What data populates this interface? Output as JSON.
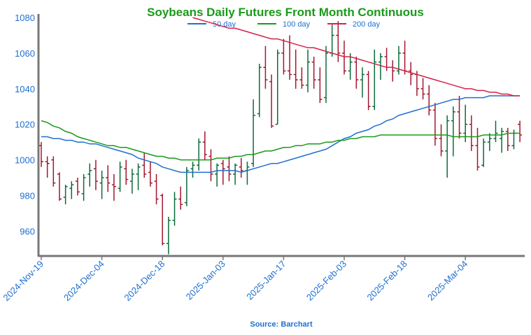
{
  "chart_data": {
    "type": "ohlc",
    "title": "Soybeans Daily Futures Front Month Continuous",
    "source": "Source: Barchart",
    "categories": [
      "2024-Nov-19",
      null,
      null,
      null,
      null,
      null,
      null,
      null,
      null,
      null,
      "2024-Dec-04",
      null,
      null,
      null,
      null,
      null,
      null,
      null,
      null,
      null,
      "2024-Dec-18",
      null,
      null,
      null,
      null,
      null,
      null,
      null,
      null,
      null,
      "2025-Jan-03",
      null,
      null,
      null,
      null,
      null,
      null,
      null,
      null,
      null,
      "2025-Jan-17",
      null,
      null,
      null,
      null,
      null,
      null,
      null,
      null,
      null,
      "2025-Feb-03",
      null,
      null,
      null,
      null,
      null,
      null,
      null,
      null,
      null,
      "2025-Feb-18",
      null,
      null,
      null,
      null,
      null,
      null,
      null,
      null,
      null,
      "2025-Mar-04",
      null,
      null,
      null,
      null,
      null,
      null,
      null,
      null,
      null
    ],
    "open": [
      1008,
      999,
      1000,
      992,
      979,
      984,
      988,
      981,
      992,
      995,
      987,
      990,
      986,
      984,
      995,
      988,
      992,
      997,
      993,
      988,
      980,
      953,
      966,
      978,
      976,
      995,
      997,
      1010,
      1002,
      992,
      998,
      996,
      992,
      996,
      994,
      998,
      1026,
      1052,
      1044,
      1020,
      1060,
      1050,
      1048,
      1045,
      1042,
      1055,
      1045,
      1035,
      1060,
      1070,
      1060,
      1050,
      1055,
      1045,
      1048,
      1030,
      1055,
      1058,
      1052,
      1050,
      1060,
      1050,
      1048,
      1040,
      1037,
      1028,
      1012,
      1005,
      1022,
      1027,
      1015,
      1020,
      1008,
      997,
      1010,
      1012,
      1012,
      1016,
      1008,
      1020
    ],
    "high": [
      1010,
      1002,
      1002,
      993,
      986,
      988,
      990,
      992,
      998,
      1000,
      994,
      997,
      992,
      999,
      1000,
      995,
      998,
      1004,
      999,
      992,
      981,
      968,
      982,
      985,
      996,
      999,
      1012,
      1016,
      1006,
      998,
      1000,
      1002,
      998,
      1001,
      999,
      1034,
      1054,
      1064,
      1048,
      1062,
      1068,
      1070,
      1062,
      1052,
      1062,
      1058,
      1052,
      1064,
      1076,
      1078,
      1067,
      1060,
      1058,
      1052,
      1050,
      1062,
      1060,
      1063,
      1056,
      1064,
      1067,
      1055,
      1050,
      1046,
      1042,
      1032,
      1020,
      1025,
      1030,
      1036,
      1031,
      1025,
      1018,
      1012,
      1015,
      1022,
      1018,
      1018,
      1017,
      1022
    ],
    "low": [
      996,
      990,
      985,
      977,
      975,
      978,
      980,
      977,
      985,
      983,
      978,
      982,
      977,
      982,
      986,
      981,
      983,
      990,
      985,
      975,
      952,
      947,
      963,
      972,
      974,
      990,
      994,
      1000,
      988,
      985,
      986,
      988,
      986,
      990,
      986,
      996,
      1024,
      1040,
      1018,
      1020,
      1048,
      1045,
      1040,
      1040,
      1038,
      1040,
      1032,
      1032,
      1058,
      1055,
      1048,
      1045,
      1040,
      1035,
      1028,
      1028,
      1045,
      1050,
      1044,
      1048,
      1048,
      1042,
      1036,
      1034,
      1025,
      1008,
      1002,
      990,
      1002,
      1012,
      1010,
      1005,
      994,
      996,
      1005,
      1010,
      1004,
      1005,
      1006,
      1010
    ],
    "close": [
      999,
      998,
      987,
      978,
      985,
      986,
      982,
      990,
      994,
      988,
      990,
      987,
      985,
      996,
      989,
      992,
      996,
      992,
      987,
      978,
      953,
      966,
      978,
      975,
      994,
      997,
      1010,
      1003,
      992,
      997,
      995,
      992,
      997,
      994,
      996,
      1025,
      1052,
      1045,
      1019,
      1060,
      1050,
      1048,
      1045,
      1042,
      1055,
      1045,
      1034,
      1060,
      1070,
      1060,
      1050,
      1055,
      1045,
      1048,
      1030,
      1055,
      1058,
      1052,
      1050,
      1060,
      1050,
      1048,
      1040,
      1037,
      1028,
      1012,
      1005,
      1022,
      1027,
      1015,
      1020,
      1008,
      996,
      1010,
      1012,
      1015,
      1016,
      1008,
      1015,
      1014
    ],
    "up_color": "#0b6b3a",
    "down_color": "#a3172d",
    "series": [
      {
        "name": "50 day",
        "color": "#1f6fd1",
        "values": [
          1013,
          1013,
          1012,
          1012,
          1011,
          1011,
          1010,
          1010,
          1009,
          1009,
          1008,
          1007,
          1006,
          1005,
          1004,
          1003,
          1001,
          1000,
          999,
          998,
          996,
          995,
          994,
          993,
          993,
          993,
          993,
          993,
          993,
          994,
          994,
          994,
          994,
          993,
          994,
          995,
          996,
          997,
          998,
          998,
          999,
          1000,
          1001,
          1002,
          1003,
          1004,
          1005,
          1006,
          1008,
          1010,
          1012,
          1013,
          1015,
          1016,
          1017,
          1019,
          1020,
          1022,
          1023,
          1025,
          1026,
          1027,
          1028,
          1029,
          1030,
          1031,
          1032,
          1033,
          1034,
          1034,
          1035,
          1035,
          1035,
          1035,
          1036,
          1036,
          1036,
          1036,
          1036,
          1036
        ]
      },
      {
        "name": "100 day",
        "color": "#1a9a1a",
        "values": [
          1022,
          1021,
          1019,
          1018,
          1016,
          1015,
          1013,
          1012,
          1011,
          1010,
          1009,
          1008,
          1008,
          1007,
          1007,
          1006,
          1005,
          1004,
          1003,
          1002,
          1002,
          1001,
          1001,
          1000,
          1000,
          1000,
          1000,
          1000,
          1000,
          1001,
          1001,
          1001,
          1002,
          1002,
          1003,
          1003,
          1004,
          1005,
          1005,
          1006,
          1007,
          1007,
          1008,
          1008,
          1009,
          1009,
          1009,
          1010,
          1010,
          1011,
          1011,
          1012,
          1012,
          1013,
          1013,
          1013,
          1014,
          1014,
          1014,
          1014,
          1014,
          1014,
          1014,
          1014,
          1014,
          1014,
          1014,
          1014,
          1013,
          1013,
          1013,
          1013,
          1013,
          1014,
          1014,
          1014,
          1014,
          1015,
          1015,
          1015
        ]
      },
      {
        "name": "200 day",
        "color": "#d8204a",
        "values": [
          null,
          null,
          null,
          null,
          null,
          null,
          null,
          null,
          null,
          null,
          null,
          null,
          null,
          null,
          null,
          null,
          null,
          null,
          null,
          null,
          null,
          null,
          null,
          null,
          null,
          1080,
          1079,
          1078,
          1077,
          1076,
          1075,
          1074,
          1074,
          1073,
          1072,
          1071,
          1070,
          1069,
          1068,
          1068,
          1067,
          1066,
          1065,
          1064,
          1063,
          1063,
          1062,
          1061,
          1060,
          1059,
          1058,
          1058,
          1057,
          1056,
          1055,
          1054,
          1053,
          1052,
          1052,
          1051,
          1050,
          1049,
          1048,
          1047,
          1046,
          1045,
          1044,
          1043,
          1042,
          1041,
          1040,
          1040,
          1039,
          1039,
          1038,
          1038,
          1037,
          1037,
          1036,
          1036
        ]
      }
    ],
    "ylim": [
      946,
      1082
    ],
    "yticks": [
      960,
      980,
      1000,
      1020,
      1040,
      1060,
      1080
    ]
  }
}
